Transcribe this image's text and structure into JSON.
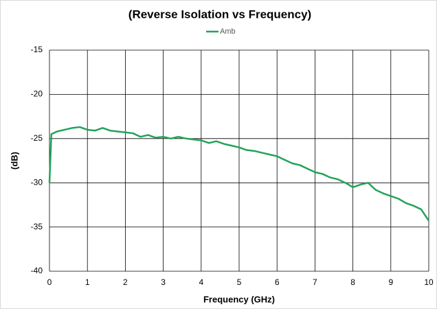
{
  "chart_data": {
    "type": "line",
    "title": "(Reverse Isolation vs Frequency)",
    "x_label": "Frequency (GHz)",
    "y_label": "(dB)",
    "x": [
      0,
      0.05,
      0.2,
      0.4,
      0.6,
      0.8,
      1.0,
      1.2,
      1.4,
      1.6,
      1.8,
      2.0,
      2.2,
      2.4,
      2.6,
      2.8,
      3.0,
      3.2,
      3.4,
      3.6,
      3.8,
      4.0,
      4.2,
      4.4,
      4.6,
      4.8,
      5.0,
      5.2,
      5.4,
      5.6,
      5.8,
      6.0,
      6.2,
      6.4,
      6.6,
      6.8,
      7.0,
      7.2,
      7.4,
      7.6,
      7.8,
      8.0,
      8.2,
      8.4,
      8.6,
      8.8,
      9.0,
      9.2,
      9.4,
      9.6,
      9.8,
      10.0
    ],
    "series": [
      {
        "name": "Amb",
        "color": "#21a35a",
        "values": [
          -30,
          -24.5,
          -24.2,
          -24.0,
          -23.8,
          -23.7,
          -24.0,
          -24.1,
          -23.8,
          -24.1,
          -24.2,
          -24.3,
          -24.4,
          -24.8,
          -24.6,
          -24.9,
          -24.8,
          -25.0,
          -24.8,
          -25.0,
          -25.1,
          -25.2,
          -25.5,
          -25.3,
          -25.6,
          -25.8,
          -26.0,
          -26.3,
          -26.4,
          -26.6,
          -26.8,
          -27.0,
          -27.4,
          -27.8,
          -28.0,
          -28.4,
          -28.8,
          -29.0,
          -29.4,
          -29.6,
          -30.0,
          -30.5,
          -30.2,
          -30.0,
          -30.8,
          -31.2,
          -31.5,
          -31.8,
          -32.3,
          -32.6,
          -33.0,
          -34.3
        ]
      }
    ],
    "xlim": [
      0,
      10
    ],
    "xticks": [
      0,
      1,
      2,
      3,
      4,
      5,
      6,
      7,
      8,
      9,
      10
    ],
    "ylim": [
      -40,
      -15
    ],
    "yticks": [
      -40,
      -35,
      -30,
      -25,
      -20,
      -15
    ],
    "grid": true,
    "legend": "top"
  }
}
